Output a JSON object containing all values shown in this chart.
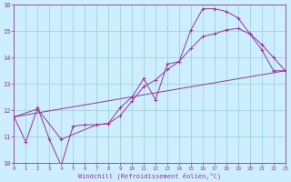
{
  "bg_color": "#cceeff",
  "line_color": "#993399",
  "grid_color": "#99cccc",
  "xlabel": "Windchill (Refroidissement éolien,°C)",
  "xlim": [
    0,
    23
  ],
  "ylim": [
    10,
    16
  ],
  "xticks": [
    0,
    1,
    2,
    3,
    4,
    5,
    6,
    7,
    8,
    9,
    10,
    11,
    12,
    13,
    14,
    15,
    16,
    17,
    18,
    19,
    20,
    21,
    22,
    23
  ],
  "yticks": [
    10,
    11,
    12,
    13,
    14,
    15,
    16
  ],
  "line1_x": [
    0,
    1,
    2,
    3,
    4,
    5,
    6,
    7,
    8,
    9,
    10,
    11,
    12,
    13,
    14,
    15,
    16,
    17,
    18,
    19,
    20,
    21,
    22,
    23
  ],
  "line1_y": [
    11.75,
    10.8,
    12.1,
    10.9,
    9.9,
    11.4,
    11.45,
    11.45,
    11.5,
    12.1,
    12.5,
    13.2,
    12.4,
    13.75,
    13.85,
    15.05,
    15.85,
    15.85,
    15.75,
    15.5,
    14.9,
    14.3,
    13.5,
    13.5
  ],
  "line2_x": [
    0,
    23
  ],
  "line2_y": [
    11.75,
    13.5
  ],
  "line3_x": [
    0,
    2,
    4,
    7,
    8,
    9,
    10,
    11,
    12,
    13,
    14,
    15,
    16,
    17,
    18,
    19,
    20,
    21,
    22,
    23
  ],
  "line3_y": [
    11.75,
    12.05,
    10.9,
    11.45,
    11.5,
    11.8,
    12.35,
    12.9,
    13.15,
    13.55,
    13.85,
    14.35,
    14.8,
    14.9,
    15.05,
    15.1,
    14.9,
    14.5,
    14.0,
    13.5
  ]
}
